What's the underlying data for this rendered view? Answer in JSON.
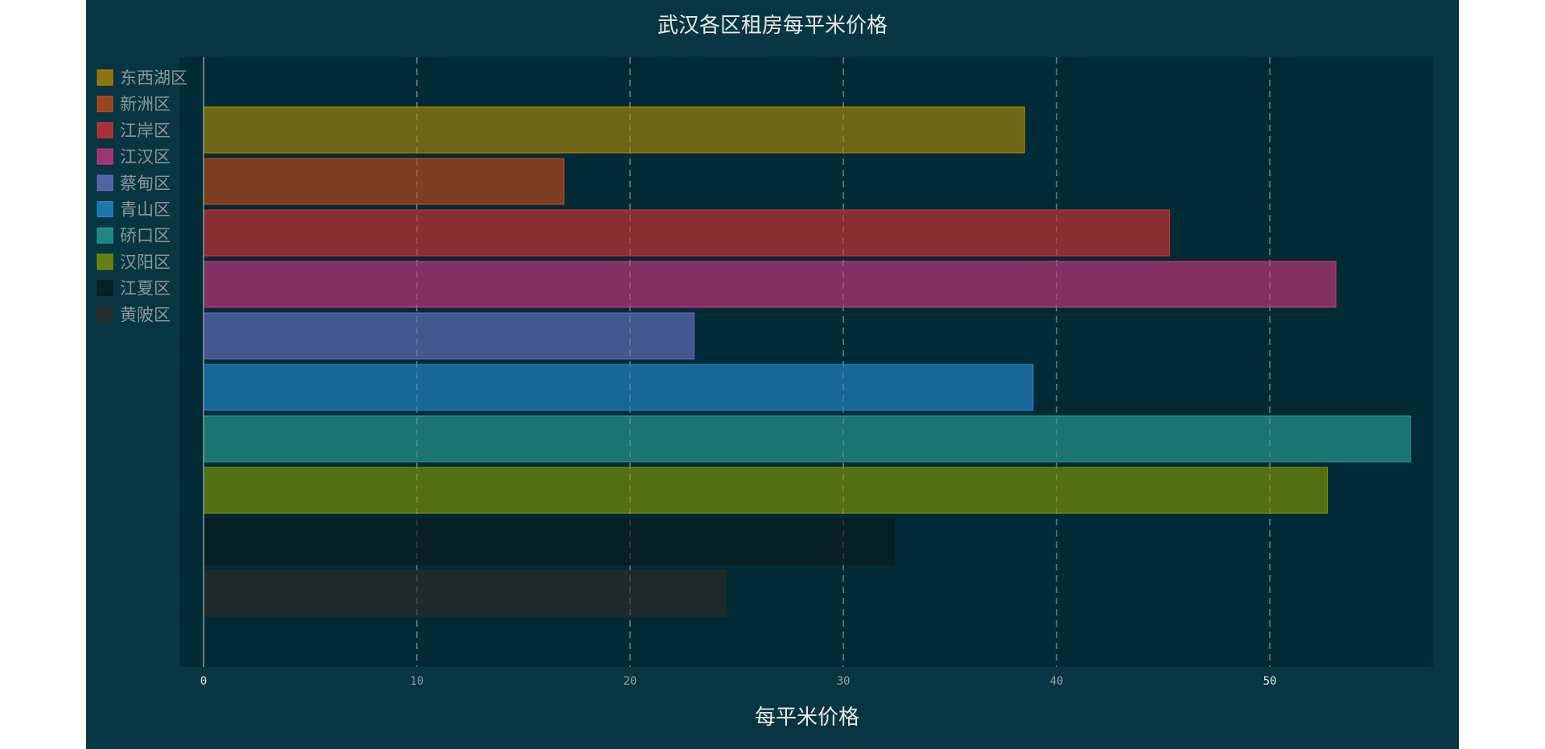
{
  "chart_data": {
    "type": "bar",
    "orientation": "horizontal",
    "title": "武汉各区租房每平米价格",
    "xlabel": "每平米价格",
    "ylabel": "",
    "xlim": [
      0,
      56.6
    ],
    "x_ticks": [
      "0",
      "10",
      "20",
      "30",
      "40",
      "50"
    ],
    "grid": "vertical-dashed",
    "legend_position": "top-left",
    "categories": [
      "东西湖区",
      "新洲区",
      "江岸区",
      "江汉区",
      "蔡甸区",
      "青山区",
      "硚口区",
      "汉阳区",
      "江夏区",
      "黄陂区"
    ],
    "values": [
      38.5,
      16.9,
      45.3,
      53.1,
      23.0,
      38.9,
      56.6,
      52.7,
      32.4,
      24.5
    ],
    "colors": [
      "#b58900",
      "#cb4b16",
      "#dc322f",
      "#d33682",
      "#6c71c4",
      "#268bd2",
      "#2aa198",
      "#859900",
      "#0a1a1a",
      "#2e2a22"
    ],
    "background": "#073642",
    "plot_background": "#002b36"
  }
}
